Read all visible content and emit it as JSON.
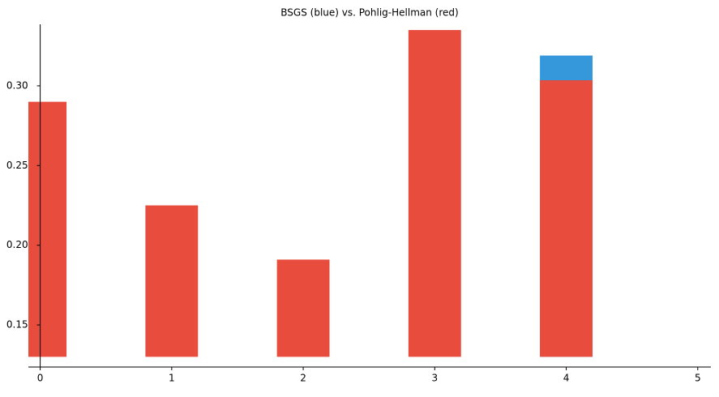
{
  "chart_data": {
    "type": "bar",
    "title": "BSGS (blue) vs. Pohlig-Hellman (red)",
    "x": [
      0,
      1,
      2,
      3,
      4
    ],
    "bar_width": 0.4,
    "base": 0.13,
    "series": [
      {
        "name": "BSGS",
        "color": "#3498db",
        "values": [
          null,
          null,
          null,
          null,
          0.319
        ]
      },
      {
        "name": "Pohlig-Hellman",
        "color": "#e74c3c",
        "values": [
          0.29,
          0.225,
          0.191,
          0.335,
          0.3035
        ]
      }
    ],
    "xlim": [
      -0.09,
      5.1
    ],
    "ylim": [
      0.1236,
      0.3386
    ],
    "xticks": [
      0,
      1,
      2,
      3,
      4,
      5
    ],
    "yticks": [
      0.15,
      {
        "value": 0.2,
        "label": "0.20"
      },
      0.25,
      {
        "value": 0.3,
        "label": "0.30"
      }
    ]
  }
}
